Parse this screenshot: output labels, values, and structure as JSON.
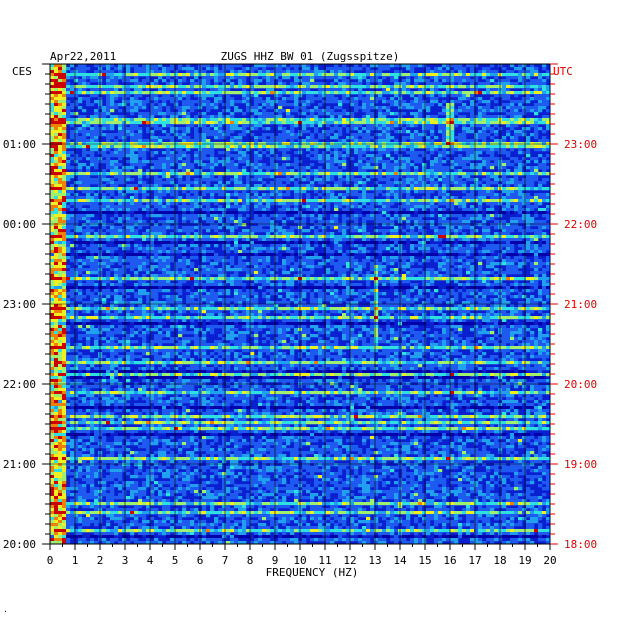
{
  "chart_data": {
    "type": "heatmap",
    "title": "ZUGS HHZ BW 01 (Zugsspitze)",
    "date": "Apr22,2011",
    "xlabel": "FREQUENCY (HZ)",
    "x_ticks": [
      "0",
      "1",
      "2",
      "3",
      "4",
      "5",
      "6",
      "7",
      "8",
      "9",
      "10",
      "11",
      "12",
      "13",
      "14",
      "15",
      "16",
      "17",
      "18",
      "19",
      "20"
    ],
    "xlim": [
      0,
      20
    ],
    "left_axis": {
      "label": "CES",
      "ticks": [
        "01:00",
        "00:00",
        "23:00",
        "22:00",
        "21:00",
        "20:00"
      ]
    },
    "right_axis": {
      "label": "UTC",
      "ticks": [
        "23:00",
        "22:00",
        "21:00",
        "20:00",
        "19:00",
        "18:00"
      ],
      "color": "#dd0000"
    },
    "time_span_hours": 6,
    "colormap": [
      "#0000aa",
      "#0a1fd0",
      "#1f5af0",
      "#22a0f0",
      "#30e0e0",
      "#a0f070",
      "#f0f020",
      "#f08000",
      "#cc0000"
    ],
    "features": [
      {
        "type": "band",
        "freq_range": [
          0,
          0.6
        ],
        "intensity": "high"
      },
      {
        "type": "line",
        "freq": 13.0,
        "time_range_hours": [
          2.5,
          3.5
        ],
        "intensity": "medium"
      },
      {
        "type": "line",
        "freq": 16.0,
        "time_range_hours": [
          5.0,
          5.5
        ],
        "intensity": "medium"
      }
    ],
    "grid": true
  },
  "footer_mark": "."
}
